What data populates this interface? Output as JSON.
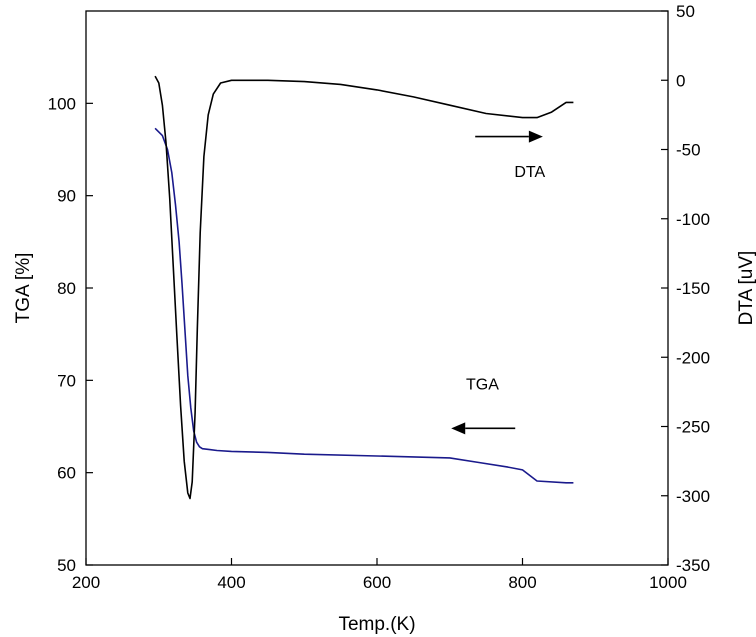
{
  "chart_data": {
    "type": "line",
    "title": "",
    "xlabel": "Temp.(K)",
    "ylabel": "TGA [%]",
    "y2label": "DTA [uV]",
    "xlim": [
      200,
      1000
    ],
    "ylim": [
      50,
      110
    ],
    "y2lim": [
      -350,
      50
    ],
    "xticks": [
      200,
      400,
      600,
      800,
      1000
    ],
    "yticks": [
      50,
      60,
      70,
      80,
      90,
      100
    ],
    "y2ticks": [
      50,
      0,
      -50,
      -100,
      -150,
      -200,
      -250,
      -300,
      -350
    ],
    "grid": false,
    "annotations": [
      {
        "text": "DTA",
        "x": 810,
        "y": 92,
        "axis": "left",
        "arrow_direction": "right",
        "arrow_from_x": 735,
        "arrow_to_x": 828,
        "arrow_y": 96.4
      },
      {
        "text": "TGA",
        "x": 745,
        "y": 69,
        "axis": "left",
        "arrow_direction": "left",
        "arrow_from_x": 790,
        "arrow_to_x": 702,
        "arrow_y": 64.8
      }
    ],
    "series": [
      {
        "name": "TGA",
        "axis": "left",
        "color": "#1a1a8c",
        "x": [
          295,
          305,
          312,
          318,
          323,
          328,
          332,
          336,
          340,
          344,
          348,
          352,
          356,
          360,
          370,
          380,
          400,
          450,
          500,
          600,
          700,
          740,
          780,
          800,
          820,
          860,
          870
        ],
        "y": [
          97.3,
          96.5,
          95.0,
          92.5,
          89.0,
          85.0,
          80.5,
          75.5,
          70.5,
          67.0,
          64.5,
          63.3,
          62.8,
          62.6,
          62.5,
          62.4,
          62.3,
          62.2,
          62.0,
          61.8,
          61.6,
          61.1,
          60.6,
          60.3,
          59.1,
          58.9,
          58.9
        ]
      },
      {
        "name": "DTA",
        "axis": "right",
        "color": "#000000",
        "x": [
          295,
          300,
          305,
          310,
          315,
          320,
          325,
          330,
          335,
          340,
          343,
          346,
          350,
          353,
          357,
          362,
          368,
          375,
          385,
          400,
          450,
          500,
          550,
          600,
          650,
          700,
          750,
          800,
          820,
          840,
          860,
          870
        ],
        "y": [
          3,
          -2,
          -18,
          -45,
          -85,
          -135,
          -185,
          -235,
          -275,
          -298,
          -302,
          -290,
          -240,
          -180,
          -110,
          -55,
          -25,
          -10,
          -2,
          0,
          0,
          -1,
          -3,
          -7,
          -12,
          -18,
          -24,
          -27,
          -27,
          -23,
          -16,
          -16
        ]
      }
    ]
  }
}
